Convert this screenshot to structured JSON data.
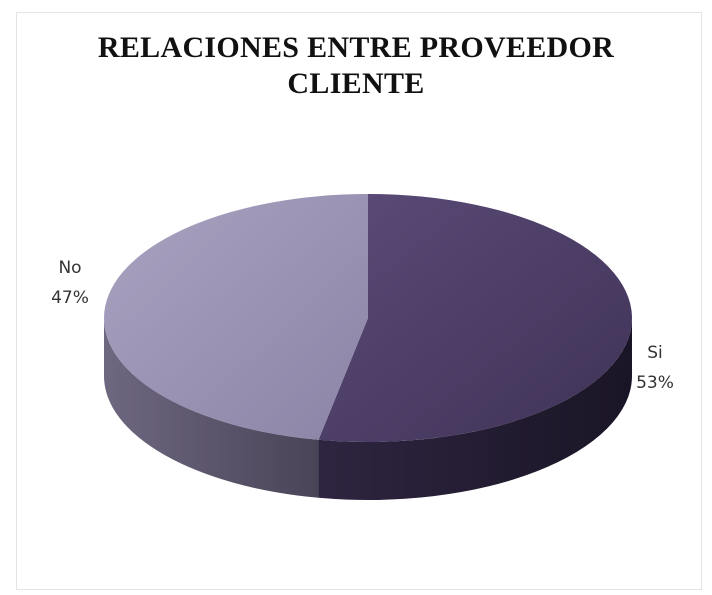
{
  "chart_data": {
    "type": "pie",
    "title_lines": [
      "RELACIONES ENTRE PROVEEDOR",
      "CLIENTE"
    ],
    "slices": [
      {
        "label": "Si",
        "value": 53,
        "pct_label": "53%",
        "color": "#52436c"
      },
      {
        "label": "No",
        "value": 47,
        "pct_label": "47%",
        "color": "#9a93b3"
      }
    ],
    "legend": "none",
    "style": "3d"
  }
}
